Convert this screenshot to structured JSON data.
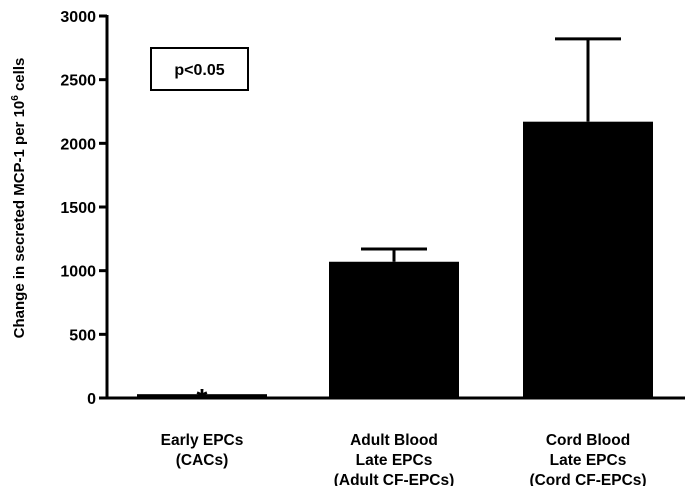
{
  "chart_data": {
    "type": "bar",
    "categories": [
      [
        "Early EPCs",
        "(CACs)"
      ],
      [
        "Adult Blood",
        "Late  EPCs",
        "(Adult CF-EPCs)"
      ],
      [
        "Cord Blood",
        "Late EPCs",
        "(Cord CF-EPCs)"
      ]
    ],
    "values": [
      30,
      1070,
      2170
    ],
    "error_upper": [
      0,
      1170,
      2820
    ],
    "marker": [
      "*",
      "",
      ""
    ],
    "ylabel_prefix": "Change in secreted MCP-1 per 10",
    "ylabel_sup": "6",
    "ylabel_suffix": " cells",
    "ylim": [
      0,
      3000
    ],
    "yticks": [
      0,
      500,
      1000,
      1500,
      2000,
      2500,
      3000
    ],
    "grid": false,
    "bar_color": "#000000",
    "annotation": "p<0.05"
  }
}
